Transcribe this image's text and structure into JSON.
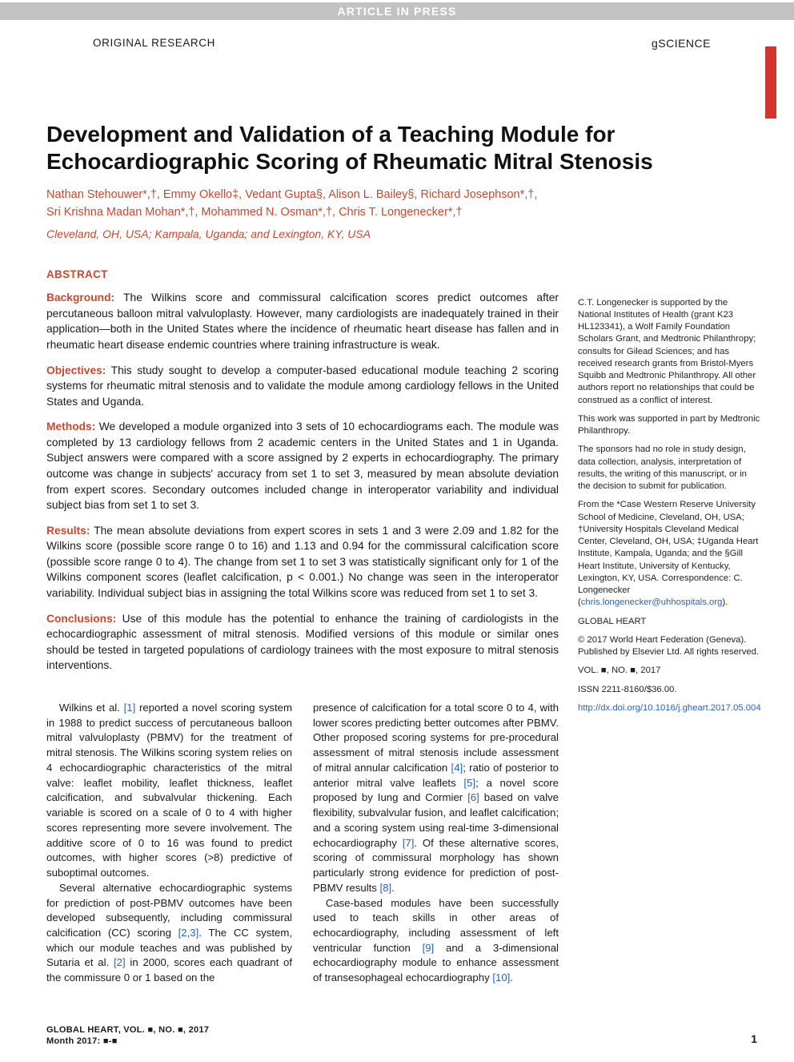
{
  "banner": {
    "text": "ARTICLE IN PRESS"
  },
  "header": {
    "left": "ORIGINAL RESEARCH",
    "right_brand": "gSCIENCE"
  },
  "title": "Development and Validation of a Teaching Module for Echocardiographic Scoring of Rheumatic Mitral Stenosis",
  "authors_line1": "Nathan Stehouwer*,†, Emmy Okello‡, Vedant Gupta§, Alison L. Bailey§, Richard Josephson*,†,",
  "authors_line2": "Sri Krishna Madan Mohan*,†, Mohammed N. Osman*,†, Chris T. Longenecker*,†",
  "affiliations": "Cleveland, OH, USA; Kampala, Uganda; and Lexington, KY, USA",
  "abstract": {
    "heading": "ABSTRACT",
    "background": {
      "label": "Background:",
      "text": " The Wilkins score and commissural calcification scores predict outcomes after percutaneous balloon mitral valvuloplasty. However, many cardiologists are inadequately trained in their application—both in the United States where the incidence of rheumatic heart disease has fallen and in rheumatic heart disease endemic countries where training infrastructure is weak."
    },
    "objectives": {
      "label": "Objectives:",
      "text": " This study sought to develop a computer-based educational module teaching 2 scoring systems for rheumatic mitral stenosis and to validate the module among cardiology fellows in the United States and Uganda."
    },
    "methods": {
      "label": "Methods:",
      "text": " We developed a module organized into 3 sets of 10 echocardiograms each. The module was completed by 13 cardiology fellows from 2 academic centers in the United States and 1 in Uganda. Subject answers were compared with a score assigned by 2 experts in echocardiography. The primary outcome was change in subjects' accuracy from set 1 to set 3, measured by mean absolute deviation from expert scores. Secondary outcomes included change in interoperator variability and individual subject bias from set 1 to set 3."
    },
    "results": {
      "label": "Results:",
      "text": " The mean absolute deviations from expert scores in sets 1 and 3 were 2.09 and 1.82 for the Wilkins score (possible score range 0 to 16) and 1.13 and 0.94 for the commissural calcification score (possible score range 0 to 4). The change from set 1 to set 3 was statistically significant only for 1 of the Wilkins component scores (leaflet calcification, p < 0.001.) No change was seen in the interoperator variability. Individual subject bias in assigning the total Wilkins score was reduced from set 1 to set 3."
    },
    "conclusions": {
      "label": "Conclusions:",
      "text": " Use of this module has the potential to enhance the training of cardiologists in the echocardiographic assessment of mitral stenosis. Modified versions of this module or similar ones should be tested in targeted populations of cardiology trainees with the most exposure to mitral stenosis interventions."
    }
  },
  "body": {
    "col1_p1a": "Wilkins et al. ",
    "col1_p1_ref1": "[1]",
    "col1_p1b": " reported a novel scoring system in 1988 to predict success of percutaneous balloon mitral valvuloplasty (PBMV) for the treatment of mitral stenosis. The Wilkins scoring system relies on 4 echocardiographic characteristics of the mitral valve: leaflet mobility, leaflet thickness, leaflet calcification, and subvalvular thickening. Each variable is scored on a scale of 0 to 4 with higher scores representing more severe involvement. The additive score of 0 to 16 was found to predict outcomes, with higher scores (>8) predictive of suboptimal outcomes.",
    "col1_p2a": "Several alternative echocardiographic systems for prediction of post-PBMV outcomes have been developed subsequently, including commissural calcification (CC) scoring ",
    "col1_p2_ref23": "[2,3]",
    "col1_p2b": ". The CC system, which our module teaches and was published by Sutaria et al. ",
    "col1_p2_ref2": "[2]",
    "col1_p2c": " in 2000, scores each quadrant of the commissure 0 or 1 based on the",
    "col2_p1a": "presence of calcification for a total score 0 to 4, with lower scores predicting better outcomes after PBMV. Other proposed scoring systems for pre-procedural assessment of mitral stenosis include assessment of mitral annular calcification ",
    "col2_p1_ref4": "[4]",
    "col2_p1b": "; ratio of posterior to anterior mitral valve leaflets ",
    "col2_p1_ref5": "[5]",
    "col2_p1c": "; a novel score proposed by Iung and Cormier ",
    "col2_p1_ref6": "[6]",
    "col2_p1d": " based on valve flexibility, subvalvular fusion, and leaflet calcification; and a scoring system using real-time 3-dimensional echocardiography ",
    "col2_p1_ref7": "[7]",
    "col2_p1e": ". Of these alternative scores, scoring of commissural morphology has shown particularly strong evidence for prediction of post-PBMV results ",
    "col2_p1_ref8": "[8]",
    "col2_p1f": ".",
    "col2_p2a": "Case-based modules have been successfully used to teach skills in other areas of echocardiography, including assessment of left ventricular function ",
    "col2_p2_ref9": "[9]",
    "col2_p2b": " and a 3-dimensional echocardiography module to enhance assessment of transesophageal echocardiography ",
    "col2_p2_ref10": "[10]",
    "col2_p2c": "."
  },
  "sidebar": {
    "coi": "C.T. Longenecker is supported by the National Institutes of Health (grant K23 HL123341), a Wolf Family Foundation Scholars Grant, and Medtronic Philanthropy; consults for Gilead Sciences; and has received research grants from Bristol-Myers Squibb and Medtronic Philanthropy. All other authors report no relationships that could be construed as a conflict of interest.",
    "support": "This work was supported in part by Medtronic Philanthropy.",
    "role": "The sponsors had no role in study design, data collection, analysis, interpretation of results, the writing of this manuscript, or in the decision to submit for publication.",
    "from": "From the *Case Western Reserve University School of Medicine, Cleveland, OH, USA; †University Hospitals Cleveland Medical Center, Cleveland, OH, USA; ‡Uganda Heart Institute, Kampala, Uganda; and the §Gill Heart Institute, University of Kentucky, Lexington, KY, USA. Correspondence: C. Longenecker (",
    "email": "chris.longenecker@uhhospitals.org",
    "from_close": ").",
    "journal_heading": "GLOBAL HEART",
    "copyright": "© 2017 World Heart Federation (Geneva). Published by Elsevier Ltd. All rights reserved.",
    "vol": "VOL. ■, NO. ■, 2017",
    "issn": "ISSN 2211-8160/$36.00.",
    "doi": "http://dx.doi.org/10.1016/j.gheart.2017.05.004"
  },
  "footer": {
    "line1": "GLOBAL HEART, VOL. ■, NO. ■, 2017",
    "line2": "Month 2017: ■-■",
    "page": "1"
  },
  "colors": {
    "accent": "#c54a2f",
    "red_tab": "#d0352f",
    "link": "#2a62b8",
    "banner_grey": "#c2c2c2"
  }
}
